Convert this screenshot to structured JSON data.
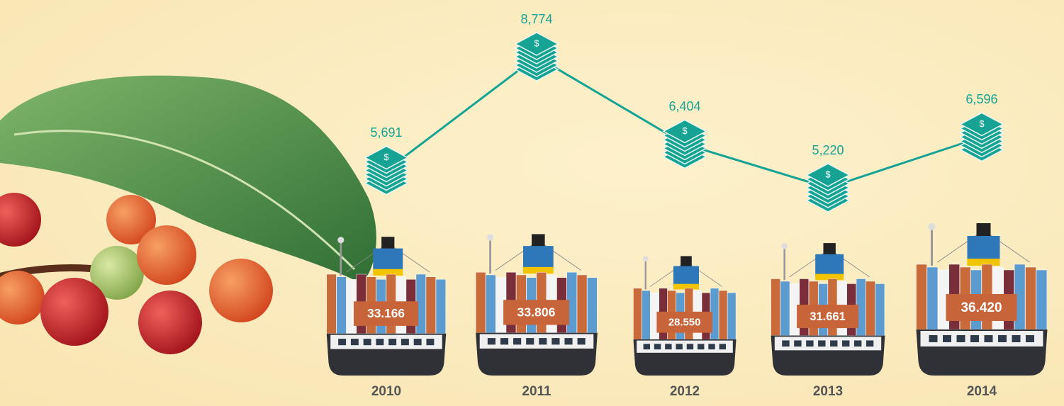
{
  "chart_data": {
    "type": "line",
    "categories": [
      "2010",
      "2011",
      "2012",
      "2013",
      "2014"
    ],
    "series": [
      {
        "values": [
          5691,
          8774,
          6404,
          5220,
          6596
        ],
        "value_labels": [
          "5,691",
          "8,774",
          "6,404",
          "5,220",
          "6,596"
        ],
        "color": "#16a394"
      },
      {
        "values": [
          33166,
          33806,
          28550,
          31661,
          36420
        ],
        "value_labels": [
          "33.166",
          "33.806",
          "28.550",
          "31.661",
          "36.420"
        ],
        "color": "#c8643a"
      }
    ]
  }
}
